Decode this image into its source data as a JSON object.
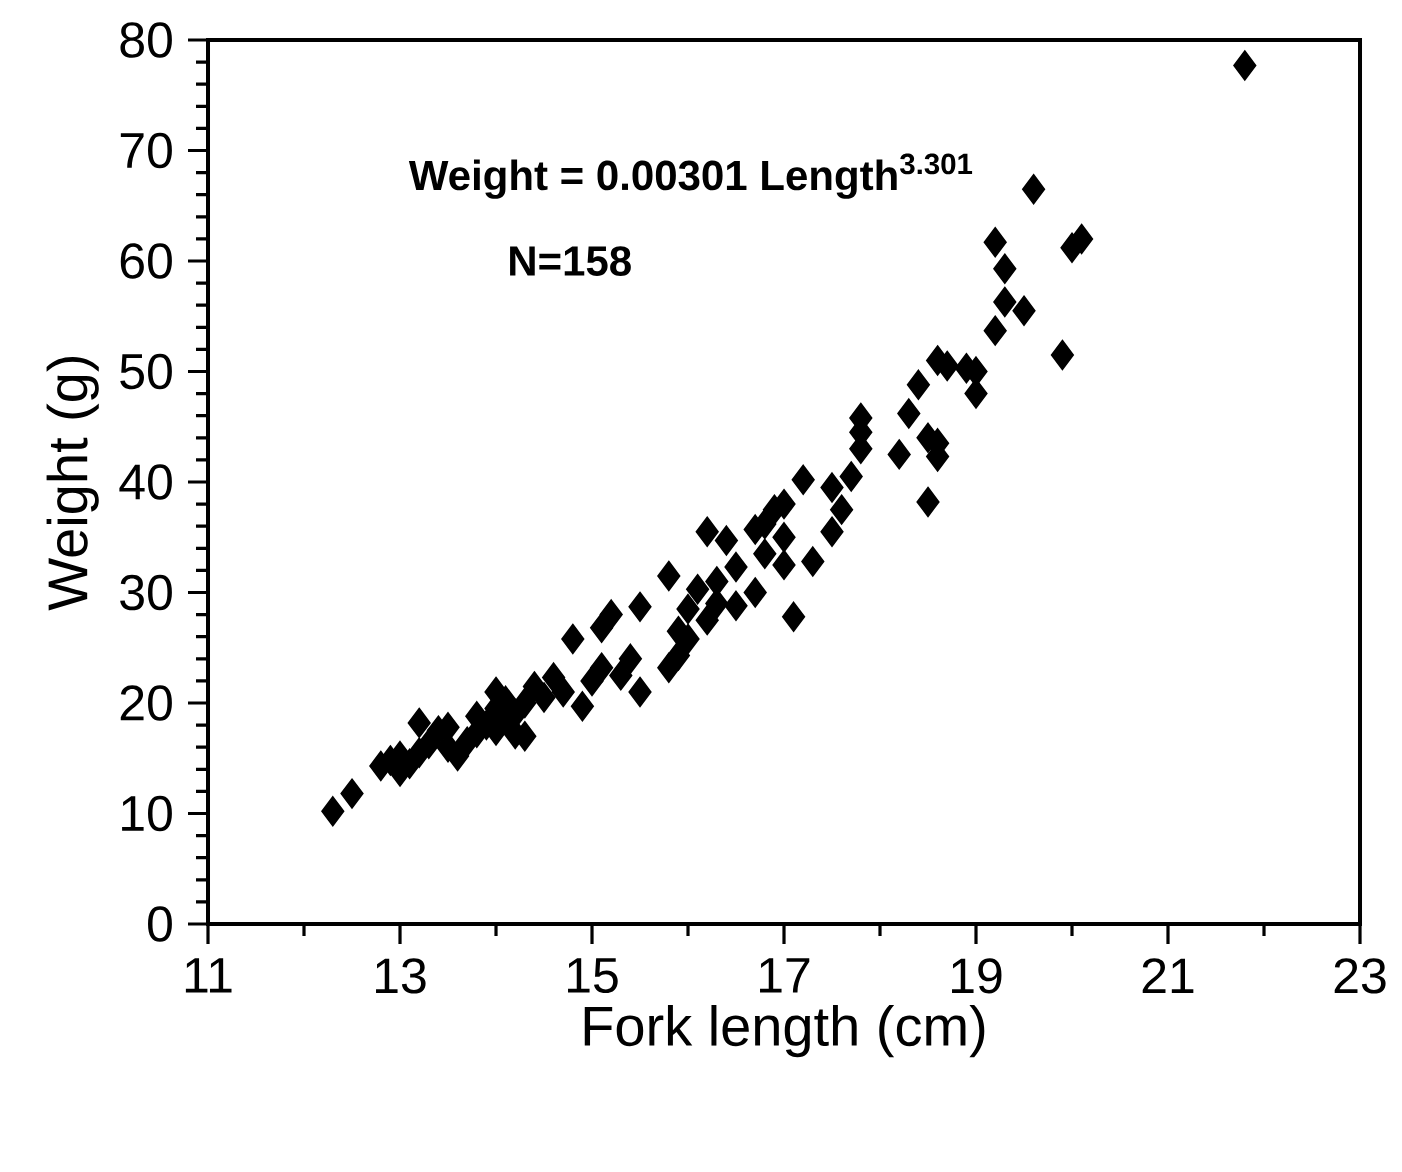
{
  "chart_data": {
    "type": "scatter",
    "xlabel": "Fork length (cm)",
    "ylabel": "Weight (g)",
    "annotations": [
      "Weight = 0.00301 Length$^{3.301}$",
      "N=158"
    ],
    "xlim": [
      11,
      23
    ],
    "xticks": [
      11,
      13,
      15,
      17,
      19,
      21,
      23
    ],
    "ylim": [
      0,
      80
    ],
    "yticks": [
      0,
      10,
      20,
      30,
      40,
      50,
      60,
      70,
      80
    ],
    "marker": "diamond",
    "color": "#000000",
    "x": [
      12.3,
      12.5,
      12.8,
      12.9,
      13.0,
      13.0,
      13.1,
      13.2,
      13.2,
      13.3,
      13.4,
      13.5,
      13.5,
      13.6,
      13.7,
      13.8,
      13.8,
      13.9,
      14.0,
      14.0,
      14.0,
      14.1,
      14.1,
      14.2,
      14.2,
      14.3,
      14.3,
      14.4,
      14.5,
      14.6,
      14.7,
      14.8,
      14.9,
      15.0,
      15.1,
      15.1,
      15.2,
      15.3,
      15.4,
      15.5,
      15.5,
      15.8,
      15.8,
      15.9,
      15.9,
      16.0,
      16.0,
      16.1,
      16.2,
      16.2,
      16.3,
      16.3,
      16.4,
      16.5,
      16.5,
      16.7,
      16.7,
      16.8,
      16.8,
      16.9,
      17.0,
      17.0,
      17.0,
      17.1,
      17.2,
      17.3,
      17.5,
      17.5,
      17.6,
      17.7,
      17.8,
      17.8,
      17.8,
      18.2,
      18.3,
      18.4,
      18.5,
      18.5,
      18.6,
      18.6,
      18.6,
      18.7,
      18.9,
      19.0,
      19.0,
      19.2,
      19.2,
      19.3,
      19.3,
      19.5,
      19.6,
      19.9,
      20.0,
      20.1,
      21.8
    ],
    "values": [
      10.2,
      11.8,
      14.3,
      14.8,
      13.8,
      15.2,
      14.5,
      15.5,
      18.2,
      16.3,
      17.5,
      16.0,
      17.8,
      15.2,
      16.5,
      17.3,
      18.8,
      18.0,
      17.5,
      19.5,
      21.0,
      18.5,
      20.2,
      17.2,
      19.0,
      20.0,
      17.0,
      21.5,
      20.5,
      22.3,
      21.0,
      25.8,
      19.7,
      22.0,
      23.2,
      26.8,
      28.0,
      22.5,
      24.0,
      21.0,
      28.7,
      23.2,
      31.5,
      24.3,
      26.5,
      28.5,
      25.8,
      30.3,
      27.5,
      35.5,
      31.0,
      29.0,
      34.7,
      28.8,
      32.3,
      35.7,
      30.0,
      33.5,
      36.2,
      37.5,
      35.0,
      38.0,
      32.5,
      27.8,
      40.2,
      32.8,
      35.5,
      39.5,
      37.5,
      40.5,
      43.0,
      44.5,
      45.8,
      42.5,
      46.2,
      48.8,
      44.0,
      38.2,
      43.5,
      42.3,
      51.0,
      50.5,
      50.3,
      48.0,
      50.0,
      53.7,
      61.7,
      59.3,
      56.3,
      55.5,
      66.5,
      51.5,
      61.2,
      62.0,
      77.7
    ]
  }
}
